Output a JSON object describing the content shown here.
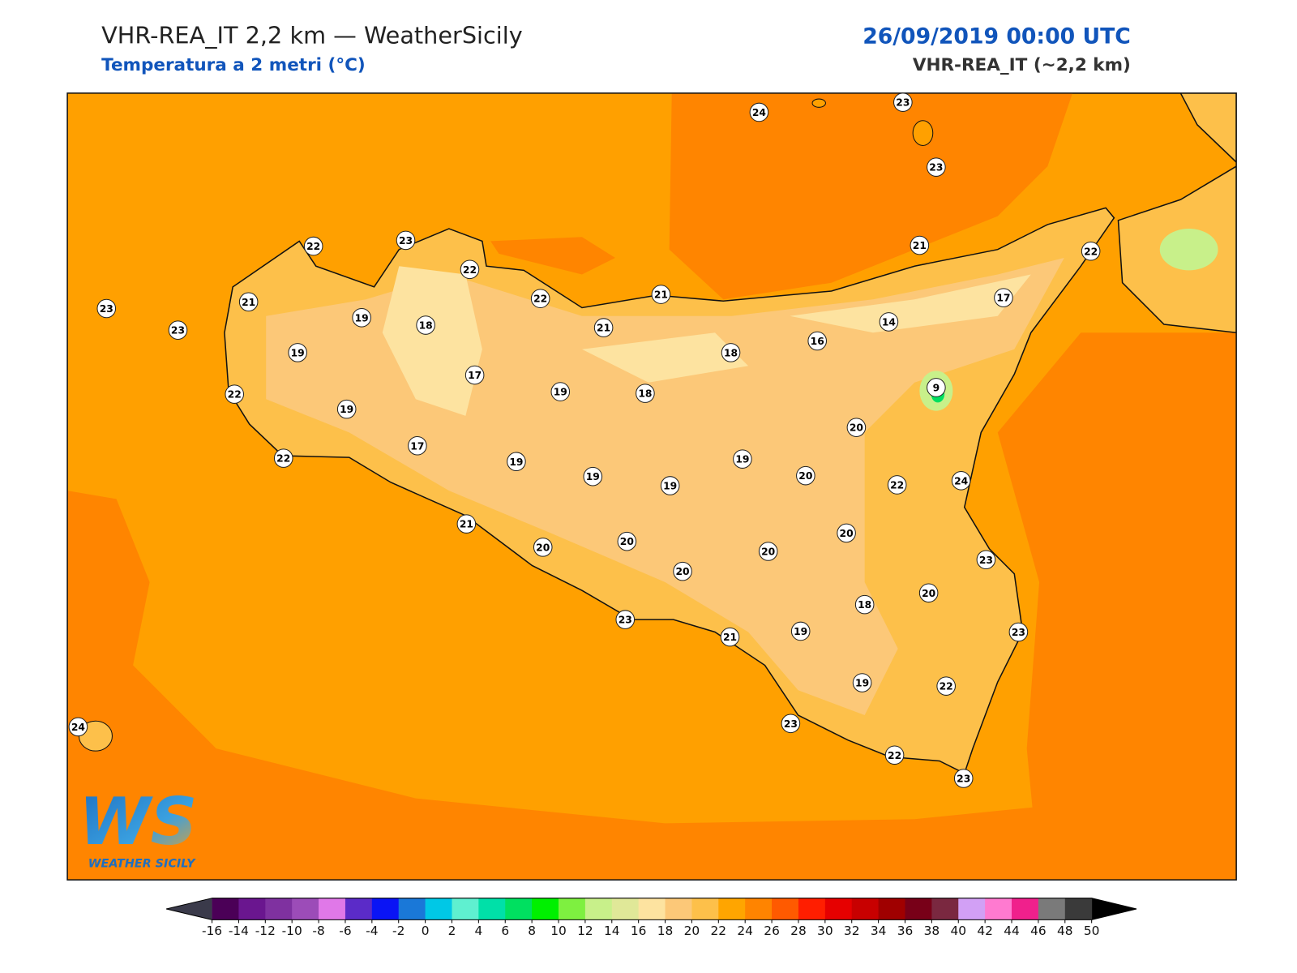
{
  "header": {
    "title": "VHR-REA_IT 2,2 km — WeatherSicily",
    "subtitle": "Temperatura a 2 metri (°C)",
    "date": "26/09/2019 00:00 UTC",
    "model": "VHR-REA_IT (~2,2 km)"
  },
  "stations": [
    24,
    23,
    23,
    22,
    23,
    22,
    21,
    22,
    23,
    21,
    23,
    19,
    18,
    22,
    21,
    21,
    17,
    14,
    16,
    19,
    18,
    17,
    19,
    18,
    9,
    22,
    19,
    20,
    17,
    22,
    19,
    19,
    19,
    19,
    20,
    22,
    24,
    21,
    20,
    20,
    20,
    20,
    20,
    23,
    20,
    18,
    23,
    21,
    19,
    23,
    19,
    22,
    23,
    24,
    22,
    23
  ],
  "colorbar": {
    "ticks": [
      -16,
      -14,
      -12,
      -10,
      -8,
      -6,
      -4,
      -2,
      0,
      2,
      4,
      6,
      8,
      10,
      12,
      14,
      16,
      18,
      20,
      22,
      24,
      26,
      28,
      30,
      32,
      34,
      36,
      38,
      40,
      42,
      44,
      46,
      48,
      50
    ],
    "colors": [
      "#4b0057",
      "#6a168f",
      "#7f31a0",
      "#9c4cb8",
      "#e078e8",
      "#5b2bc8",
      "#0a14f5",
      "#1a78d8",
      "#00c8e6",
      "#5ff0d0",
      "#00e0a8",
      "#00e060",
      "#00f000",
      "#7ef040",
      "#c8f08a",
      "#e0e898",
      "#fde3a0",
      "#fcc878",
      "#fdc04a",
      "#ffa500",
      "#ff8400",
      "#ff5a00",
      "#ff1e00",
      "#e60000",
      "#c80000",
      "#a00000",
      "#780018",
      "#7a2840",
      "#d2a0f5",
      "#ff7ad0",
      "#f0208c",
      "#7a7a7a",
      "#3a3a3a"
    ],
    "under_color": "#3a3a4a",
    "over_color": "#000000"
  },
  "logo": {
    "mark": "WS",
    "text": "WEATHER SICILY"
  }
}
